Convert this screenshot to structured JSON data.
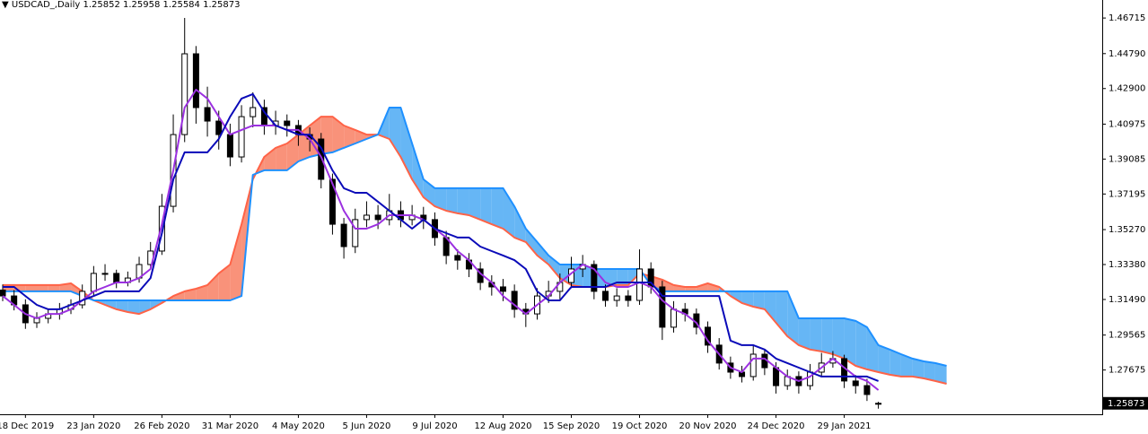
{
  "chart_data": {
    "type": "candlestick",
    "symbol": "USDCAD_,Daily",
    "categories": [
      null,
      null,
      "18 Dec 2019",
      null,
      null,
      null,
      null,
      null,
      "23 Jan 2020",
      null,
      null,
      null,
      null,
      null,
      "26 Feb 2020",
      null,
      null,
      null,
      null,
      null,
      "31 Mar 2020",
      null,
      null,
      null,
      null,
      null,
      "4 May 2020",
      null,
      null,
      null,
      null,
      null,
      "5 Jun 2020",
      null,
      null,
      null,
      null,
      null,
      "9 Jul 2020",
      null,
      null,
      null,
      null,
      null,
      "12 Aug 2020",
      null,
      null,
      null,
      null,
      null,
      "15 Sep 2020",
      null,
      null,
      null,
      null,
      null,
      "19 Oct 2020",
      null,
      null,
      null,
      null,
      null,
      "20 Nov 2020",
      null,
      null,
      null,
      null,
      null,
      "24 Dec 2020",
      null,
      null,
      null,
      null,
      null,
      "29 Jan 2021",
      null,
      null,
      null,
      null,
      null,
      null,
      null,
      null,
      null
    ],
    "ohlc": {
      "open": [
        1.32,
        1.3168,
        1.312,
        1.3023,
        1.3047,
        1.3071,
        1.3096,
        1.312,
        1.3193,
        1.329,
        1.329,
        1.3241,
        1.3265,
        1.3338,
        1.3411,
        1.3653,
        1.4041,
        1.4478,
        1.4187,
        1.4114,
        1.4041,
        1.392,
        1.4138,
        1.4187,
        1.409,
        1.4114,
        1.409,
        1.4041,
        1.4017,
        1.3799,
        1.3556,
        1.3435,
        1.3581,
        1.3605,
        1.3581,
        1.3629,
        1.3581,
        1.3605,
        1.3581,
        1.3484,
        1.3387,
        1.3362,
        1.3314,
        1.3241,
        1.3217,
        1.3193,
        1.3096,
        1.3071,
        1.3168,
        1.3193,
        1.3241,
        1.3314,
        1.3338,
        1.3193,
        1.3144,
        1.3168,
        1.3144,
        1.3314,
        1.3217,
        1.2999,
        1.3096,
        1.3071,
        1.2999,
        1.2902,
        1.2805,
        1.2756,
        1.2732,
        1.2853,
        1.278,
        1.2683,
        1.2732,
        1.2683,
        1.2756,
        1.2805,
        1.2829,
        1.2708,
        1.2683,
        1.25852,
        null,
        null,
        null,
        null,
        null,
        null
      ],
      "high": [
        1.323,
        1.32,
        1.315,
        1.308,
        1.31,
        1.313,
        1.315,
        1.323,
        1.333,
        1.334,
        1.331,
        1.33,
        1.338,
        1.346,
        1.372,
        1.415,
        1.4672,
        1.452,
        1.43,
        1.417,
        1.41,
        1.42,
        1.427,
        1.423,
        1.417,
        1.415,
        1.412,
        1.408,
        1.405,
        1.383,
        1.359,
        1.364,
        1.368,
        1.366,
        1.372,
        1.368,
        1.366,
        1.365,
        1.362,
        1.352,
        1.342,
        1.34,
        1.335,
        1.328,
        1.326,
        1.323,
        1.313,
        1.321,
        1.325,
        1.329,
        1.338,
        1.339,
        1.336,
        1.323,
        1.321,
        1.32,
        1.342,
        1.335,
        1.325,
        1.314,
        1.313,
        1.31,
        1.303,
        1.294,
        1.284,
        1.279,
        1.29,
        1.288,
        1.281,
        1.277,
        1.276,
        1.28,
        1.286,
        1.287,
        1.285,
        1.274,
        1.272,
        1.25958,
        null,
        null,
        null,
        null,
        null,
        null
      ],
      "low": [
        1.314,
        1.309,
        1.299,
        1.2995,
        1.302,
        1.304,
        1.307,
        1.31,
        1.317,
        1.325,
        1.321,
        1.322,
        1.324,
        1.331,
        1.339,
        1.362,
        1.4,
        1.41,
        1.403,
        1.396,
        1.387,
        1.389,
        1.408,
        1.404,
        1.404,
        1.403,
        1.398,
        1.395,
        1.375,
        1.35,
        1.337,
        1.34,
        1.354,
        1.353,
        1.355,
        1.354,
        1.355,
        1.353,
        1.344,
        1.334,
        1.331,
        1.327,
        1.32,
        1.317,
        1.314,
        1.305,
        1.3,
        1.304,
        1.313,
        1.315,
        1.321,
        1.327,
        1.315,
        1.311,
        1.311,
        1.311,
        1.312,
        1.318,
        1.293,
        1.297,
        1.303,
        1.296,
        1.286,
        1.277,
        1.272,
        1.27,
        1.271,
        1.274,
        1.264,
        1.266,
        1.264,
        1.266,
        1.273,
        1.278,
        1.267,
        1.264,
        1.26,
        1.25584,
        null,
        null,
        null,
        null,
        null,
        null
      ],
      "close": [
        1.3168,
        1.312,
        1.3023,
        1.3047,
        1.3071,
        1.3096,
        1.312,
        1.3193,
        1.329,
        1.329,
        1.3241,
        1.3265,
        1.3338,
        1.3411,
        1.3653,
        1.4041,
        1.4478,
        1.4187,
        1.4114,
        1.4041,
        1.392,
        1.4138,
        1.4187,
        1.409,
        1.4114,
        1.409,
        1.4041,
        1.4017,
        1.3799,
        1.3556,
        1.3435,
        1.3581,
        1.3605,
        1.3581,
        1.3629,
        1.3581,
        1.3605,
        1.3581,
        1.3484,
        1.3387,
        1.3362,
        1.3314,
        1.3241,
        1.3217,
        1.3193,
        1.3096,
        1.3071,
        1.3168,
        1.3193,
        1.3241,
        1.3314,
        1.3338,
        1.3193,
        1.3144,
        1.3168,
        1.3144,
        1.3314,
        1.3217,
        1.2999,
        1.3096,
        1.3071,
        1.2999,
        1.2902,
        1.2805,
        1.2756,
        1.2732,
        1.2853,
        1.278,
        1.2683,
        1.2732,
        1.2683,
        1.2756,
        1.2805,
        1.2829,
        1.2708,
        1.2683,
        1.2635,
        1.25873,
        null,
        null,
        null,
        null,
        null,
        null
      ]
    },
    "candle_colors": {
      "up": "#ffffff",
      "down": "#000000",
      "outline": "#000000"
    },
    "series": [
      {
        "color": "#9b30e0",
        "values": [
          1.3168,
          1.312,
          1.3071,
          1.3047,
          1.3071,
          1.3071,
          1.3096,
          1.3144,
          1.3193,
          1.3217,
          1.3241,
          1.3241,
          1.3265,
          1.3314,
          1.3556,
          1.3848,
          1.4187,
          1.4284,
          1.4236,
          1.4138,
          1.4041,
          1.4066,
          1.409,
          1.409,
          1.409,
          1.4066,
          1.4066,
          1.4017,
          1.392,
          1.3775,
          1.3629,
          1.3532,
          1.3532,
          1.3556,
          1.3605,
          1.3605,
          1.3605,
          1.3581,
          1.3532,
          1.3484,
          1.3411,
          1.3362,
          1.329,
          1.3241,
          1.3168,
          1.312,
          1.3071,
          1.312,
          1.3168,
          1.3241,
          1.329,
          1.3338,
          1.3314,
          1.3241,
          1.3217,
          1.3217,
          1.3241,
          1.3217,
          1.3144,
          1.3096,
          1.3071,
          1.3023,
          1.2926,
          1.2853,
          1.278,
          1.2756,
          1.2829,
          1.2829,
          1.278,
          1.2732,
          1.2708,
          1.2732,
          1.278,
          1.2829,
          1.278,
          1.2732,
          1.2708,
          1.2659,
          null,
          null,
          null,
          null,
          null,
          null
        ]
      },
      {
        "color": "#0a0ab8",
        "values": [
          1.3217,
          1.3217,
          1.3168,
          1.312,
          1.3096,
          1.3096,
          1.312,
          1.3144,
          1.3168,
          1.3193,
          1.3193,
          1.3193,
          1.3193,
          1.3265,
          1.3508,
          1.3799,
          1.3945,
          1.3945,
          1.3945,
          1.4017,
          1.4138,
          1.4236,
          1.426,
          1.4163,
          1.409,
          1.4066,
          1.4041,
          1.4041,
          1.3969,
          1.3848,
          1.3751,
          1.3726,
          1.3726,
          1.3678,
          1.3629,
          1.3581,
          1.3532,
          1.3581,
          1.3532,
          1.3508,
          1.3484,
          1.3484,
          1.3435,
          1.3411,
          1.3387,
          1.3362,
          1.3314,
          1.3193,
          1.3144,
          1.3144,
          1.3217,
          1.3217,
          1.3217,
          1.3217,
          1.3241,
          1.3241,
          1.3241,
          1.3241,
          1.3168,
          1.3168,
          1.3168,
          1.3168,
          1.3168,
          1.3168,
          1.2926,
          1.2902,
          1.2902,
          1.2878,
          1.2829,
          1.2805,
          1.278,
          1.2756,
          1.2732,
          1.2732,
          1.2732,
          1.2732,
          1.2732,
          1.2708,
          null,
          null,
          null,
          null,
          null,
          null
        ]
      },
      {
        "color": "#ff6347",
        "values": [
          1.3227,
          1.3227,
          1.3227,
          1.3227,
          1.3227,
          1.3227,
          1.3236,
          1.3193,
          1.3144,
          1.312,
          1.3096,
          1.3081,
          1.3071,
          1.3096,
          1.313,
          1.3168,
          1.3193,
          1.3207,
          1.3227,
          1.329,
          1.3338,
          1.3556,
          1.3799,
          1.392,
          1.3969,
          1.3993,
          1.4041,
          1.409,
          1.4138,
          1.4138,
          1.409,
          1.4066,
          1.4041,
          1.4041,
          1.4017,
          1.392,
          1.3799,
          1.3702,
          1.3653,
          1.3629,
          1.3615,
          1.3605,
          1.3581,
          1.3556,
          1.3532,
          1.3484,
          1.346,
          1.3387,
          1.3338,
          1.3265,
          1.3227,
          1.3217,
          1.3217,
          1.3217,
          1.3227,
          1.3227,
          1.329,
          1.3275,
          1.3256,
          1.3227,
          1.3217,
          1.3217,
          1.3236,
          1.3217,
          1.3168,
          1.313,
          1.311,
          1.3096,
          1.3023,
          1.295,
          1.2902,
          1.2878,
          1.2868,
          1.2853,
          1.2829,
          1.279,
          1.2771,
          1.2756,
          1.2742,
          1.2732,
          1.2732,
          1.2722,
          1.2708,
          1.2693
        ]
      },
      {
        "color": "#1e90ff",
        "values": [
          1.3193,
          1.3193,
          1.3193,
          1.3193,
          1.3193,
          1.3193,
          1.3193,
          1.3168,
          1.3144,
          1.3144,
          1.3144,
          1.3144,
          1.3144,
          1.3144,
          1.3144,
          1.3144,
          1.3144,
          1.3144,
          1.3144,
          1.3144,
          1.3144,
          1.3168,
          1.3823,
          1.3848,
          1.3848,
          1.3848,
          1.3896,
          1.392,
          1.3935,
          1.3945,
          1.3969,
          1.3993,
          1.4017,
          1.4041,
          1.4187,
          1.4187,
          1.3993,
          1.3799,
          1.3751,
          1.3751,
          1.3751,
          1.3751,
          1.3751,
          1.3751,
          1.3751,
          1.3653,
          1.3532,
          1.346,
          1.3387,
          1.3338,
          1.3338,
          1.3338,
          1.3314,
          1.3314,
          1.3314,
          1.3314,
          1.3314,
          1.3227,
          1.3193,
          1.3193,
          1.3193,
          1.3193,
          1.3193,
          1.3193,
          1.3193,
          1.3193,
          1.3193,
          1.3193,
          1.3193,
          1.3193,
          1.3047,
          1.3047,
          1.3047,
          1.3047,
          1.3047,
          1.3033,
          1.2999,
          1.2902,
          1.2878,
          1.2853,
          1.2829,
          1.2814,
          1.2805,
          1.279
        ]
      }
    ],
    "cloud_colors": {
      "a_above": "#f8866c",
      "b_above": "#55aef4"
    },
    "ylim": [
      1.2528,
      1.4769
    ],
    "yticks": [
      1.46715,
      {
        "value": 1.4479,
        "label": "1.44790"
      },
      {
        "value": 1.429,
        "label": "1.42900"
      },
      1.40975,
      1.39085,
      1.37195,
      {
        "value": 1.3527,
        "label": "1.35270"
      },
      {
        "value": 1.3338,
        "label": "1.33380"
      },
      {
        "value": 1.3149,
        "label": "1.31490"
      },
      1.29565,
      1.27675
    ]
  }
}
